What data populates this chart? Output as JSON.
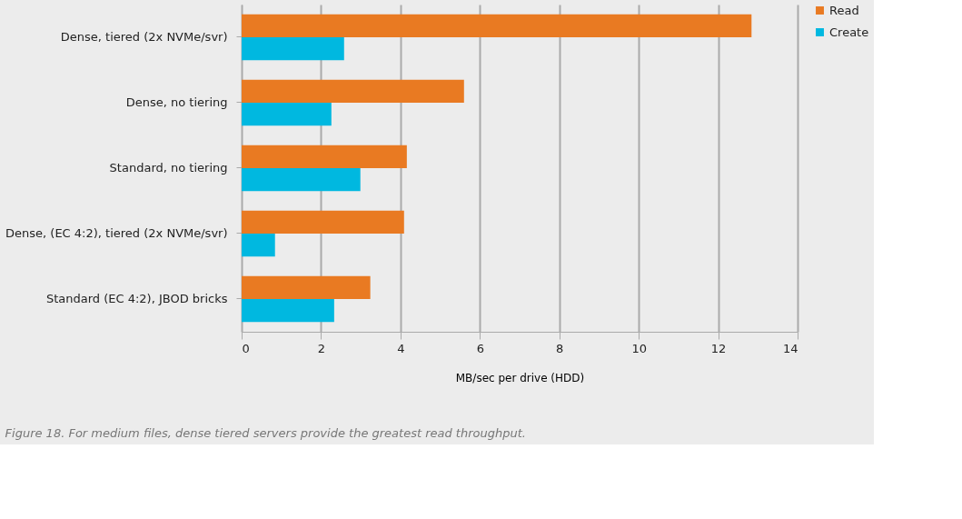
{
  "chart_data": {
    "type": "bar",
    "orientation": "horizontal",
    "xlabel": "MB/sec per drive (HDD)",
    "categories": [
      "Dense, tiered (2x NVMe/svr)",
      "Dense, no tiering",
      "Standard, no tiering",
      "Dense, (EC 4:2), tiered (2x NVMe/svr)",
      "Standard (EC 4:2), JBOD bricks"
    ],
    "series": [
      {
        "name": "Read",
        "color": "#e97a22",
        "values": [
          12.84,
          5.6,
          4.16,
          4.09,
          3.24
        ]
      },
      {
        "name": "Create",
        "color": "#00b8e0",
        "values": [
          2.58,
          2.26,
          2.99,
          0.84,
          2.33
        ]
      }
    ],
    "xlim": [
      0,
      14
    ],
    "xticks": [
      0,
      2,
      4,
      6,
      8,
      10,
      12,
      14
    ],
    "grid": "x",
    "legend": "right",
    "annotations": [
      "Figure 18. For medium files, dense tiered servers provide the greatest read throughput."
    ]
  }
}
